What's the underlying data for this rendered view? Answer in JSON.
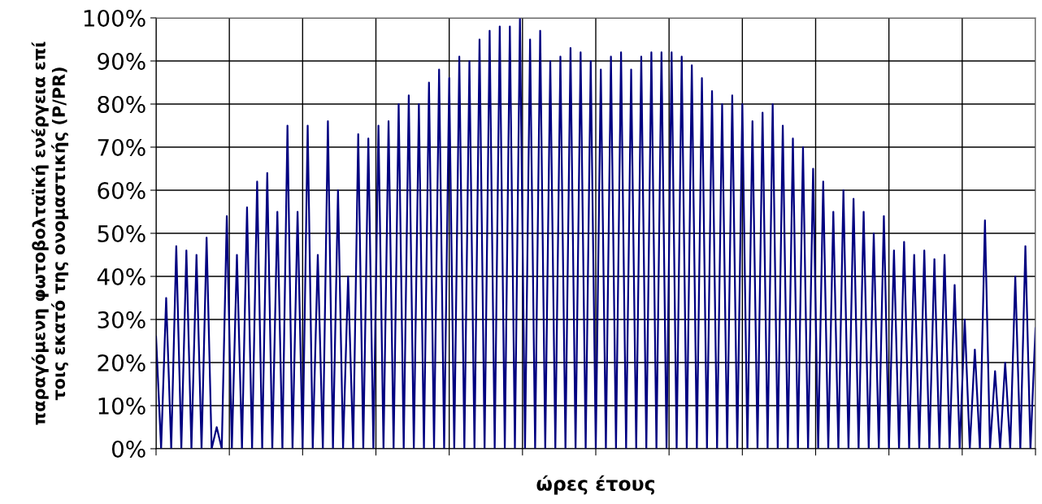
{
  "chart_data": {
    "type": "line",
    "xlabel": "ώρες έτους",
    "ylabel": "παραγόμενη φωτοβολταϊκή ενέργεια επί\nτοις εκατό της ονομαστικής (P/PR)",
    "categories": [
      null,
      null,
      null,
      null,
      null,
      null,
      null,
      null,
      null,
      null,
      null,
      null,
      null,
      null,
      null,
      null,
      null,
      null,
      null,
      null,
      null,
      null,
      null,
      null,
      null,
      null,
      null,
      null,
      null,
      null,
      null,
      null,
      null,
      null,
      null,
      null,
      null,
      null,
      null,
      null,
      null,
      null,
      null,
      null,
      null,
      null,
      null,
      null,
      null,
      null,
      null,
      null,
      null,
      null,
      null,
      null,
      null,
      null,
      null,
      null,
      null,
      null,
      null,
      null,
      null,
      null,
      null,
      null,
      null,
      null,
      null,
      null,
      null,
      null,
      null,
      null,
      null,
      null,
      null,
      null,
      null,
      null,
      null,
      null,
      null,
      null,
      null,
      null,
      null,
      null,
      null,
      null,
      null,
      null,
      null,
      null,
      null,
      null,
      null,
      null,
      null,
      null,
      null,
      null,
      null,
      null,
      null,
      null,
      null,
      null,
      null,
      null,
      null,
      null,
      null,
      null,
      null,
      null,
      null,
      null,
      null,
      null,
      null,
      null,
      null,
      null,
      null,
      null,
      null,
      null,
      null,
      null,
      null,
      null,
      null,
      null,
      null,
      null,
      null,
      null,
      null,
      null,
      null,
      null,
      null,
      null,
      null,
      null,
      null,
      null,
      null,
      null,
      null,
      null,
      null,
      null,
      null,
      null,
      null,
      null,
      null,
      null,
      null,
      null,
      null,
      null,
      null,
      null,
      null,
      null,
      null,
      null,
      null,
      null,
      null
    ],
    "series": [
      {
        "color": "#000080",
        "values": [
          26,
          0,
          35,
          0,
          47,
          0,
          46,
          0,
          45,
          0,
          49,
          0,
          5,
          0,
          54,
          0,
          45,
          0,
          56,
          0,
          62,
          0,
          64,
          0,
          55,
          0,
          75,
          0,
          55,
          0,
          75,
          0,
          45,
          0,
          76,
          0,
          60,
          0,
          40,
          0,
          73,
          0,
          72,
          0,
          75,
          0,
          76,
          0,
          80,
          0,
          82,
          0,
          80,
          0,
          85,
          0,
          88,
          0,
          86,
          0,
          91,
          0,
          90,
          0,
          95,
          0,
          97,
          0,
          98,
          0,
          98,
          0,
          100,
          0,
          95,
          0,
          97,
          0,
          90,
          0,
          91,
          0,
          93,
          0,
          92,
          0,
          90,
          0,
          88,
          0,
          91,
          0,
          92,
          0,
          88,
          0,
          91,
          0,
          92,
          0,
          92,
          0,
          92,
          0,
          91,
          0,
          89,
          0,
          86,
          0,
          83,
          0,
          80,
          0,
          82,
          0,
          80,
          0,
          76,
          0,
          78,
          0,
          80,
          0,
          75,
          0,
          72,
          0,
          70,
          0,
          65,
          0,
          62,
          0,
          55,
          0,
          60,
          0,
          58,
          0,
          55,
          0,
          50,
          0,
          54,
          0,
          46,
          0,
          48,
          0,
          45,
          0,
          46,
          0,
          44,
          0,
          45,
          0,
          38,
          0,
          30,
          0,
          23,
          0,
          53,
          0,
          18,
          0,
          20,
          0,
          40,
          0,
          47,
          0,
          28
        ]
      }
    ],
    "ylim": [
      0,
      100
    ],
    "yticks": [
      {
        "value": 0,
        "label": "0%"
      },
      {
        "value": 10,
        "label": "10%"
      },
      {
        "value": 20,
        "label": "20%"
      },
      {
        "value": 30,
        "label": "30%"
      },
      {
        "value": 40,
        "label": "40%"
      },
      {
        "value": 50,
        "label": "50%"
      },
      {
        "value": 60,
        "label": "60%"
      },
      {
        "value": 70,
        "label": "70%"
      },
      {
        "value": 80,
        "label": "80%"
      },
      {
        "value": 90,
        "label": "90%"
      },
      {
        "value": 100,
        "label": "100%"
      }
    ],
    "grid": true,
    "tick_labels": "y",
    "marker": "none",
    "line_style": "solid"
  }
}
